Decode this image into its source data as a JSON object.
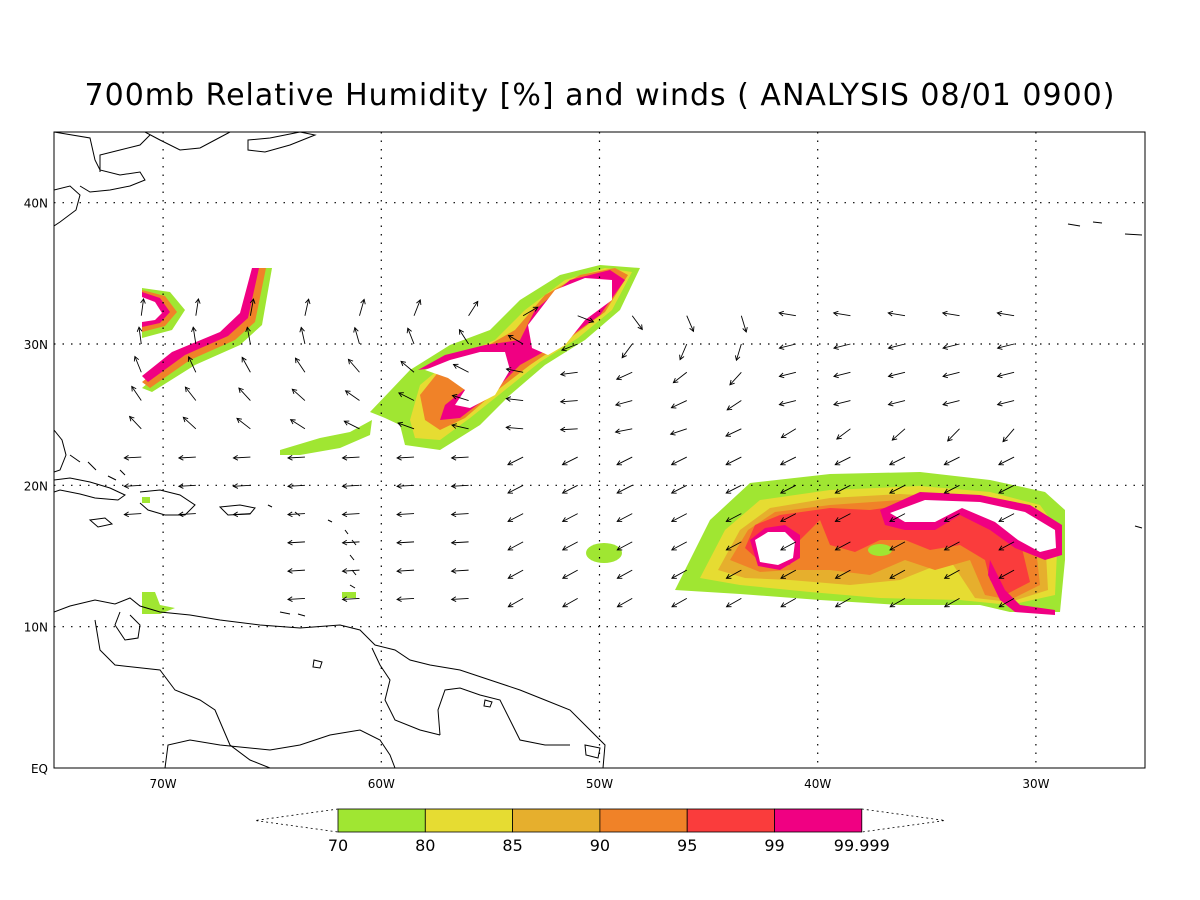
{
  "title": "700mb Relative Humidity [%] and winds ( ANALYSIS 08/01 0900)",
  "map": {
    "lon_range": [
      -75,
      -25
    ],
    "lat_range": [
      0,
      45
    ],
    "lon_grid": [
      -70,
      -60,
      -50,
      -40,
      -30
    ],
    "lat_grid": [
      0,
      10,
      20,
      30,
      40
    ],
    "lon_labels": [
      "70W",
      "60W",
      "50W",
      "40W",
      "30W"
    ],
    "lat_labels": [
      "EQ",
      "10N",
      "20N",
      "30N",
      "40N"
    ],
    "grid_style": "dotted"
  },
  "colorbar": {
    "levels": [
      "70",
      "80",
      "85",
      "90",
      "95",
      "99",
      "99.999"
    ],
    "colors": [
      "#a0e632",
      "#e6dc32",
      "#e6af2d",
      "#f08228",
      "#fa3c3c",
      "#f00082"
    ]
  },
  "wind_field": {
    "lon_start": -71,
    "lon_end": -29,
    "lon_step": 2.5,
    "lat_start": 12,
    "lat_end": 33,
    "lat_step": 2
  }
}
